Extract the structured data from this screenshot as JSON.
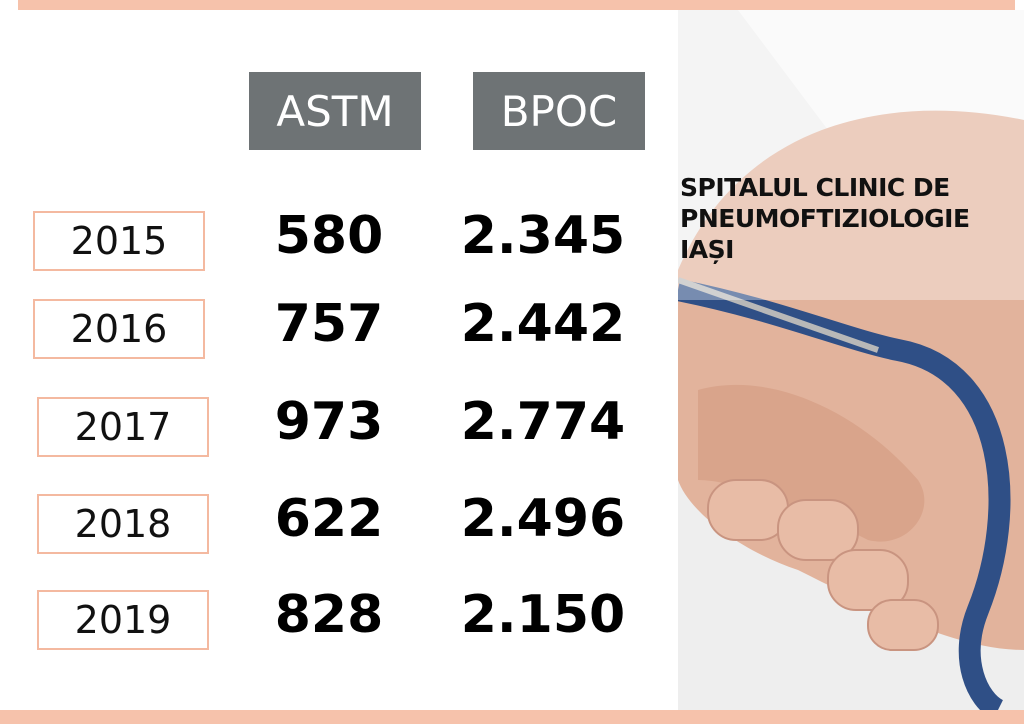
{
  "table": {
    "headers": [
      "ASTM",
      "BPOC"
    ],
    "rows": [
      [
        "2015",
        "580",
        "2.345"
      ],
      [
        "2016",
        "757",
        "2.442"
      ],
      [
        "2017",
        "973",
        "2.774"
      ],
      [
        "2018",
        "622",
        "2.496"
      ],
      [
        "2019",
        "828",
        "2.150"
      ]
    ]
  },
  "label": {
    "lines": [
      "SPITALUL CLINIC DE",
      "PNEUMOFTIZIOLOGIE",
      "IAȘI"
    ]
  }
}
